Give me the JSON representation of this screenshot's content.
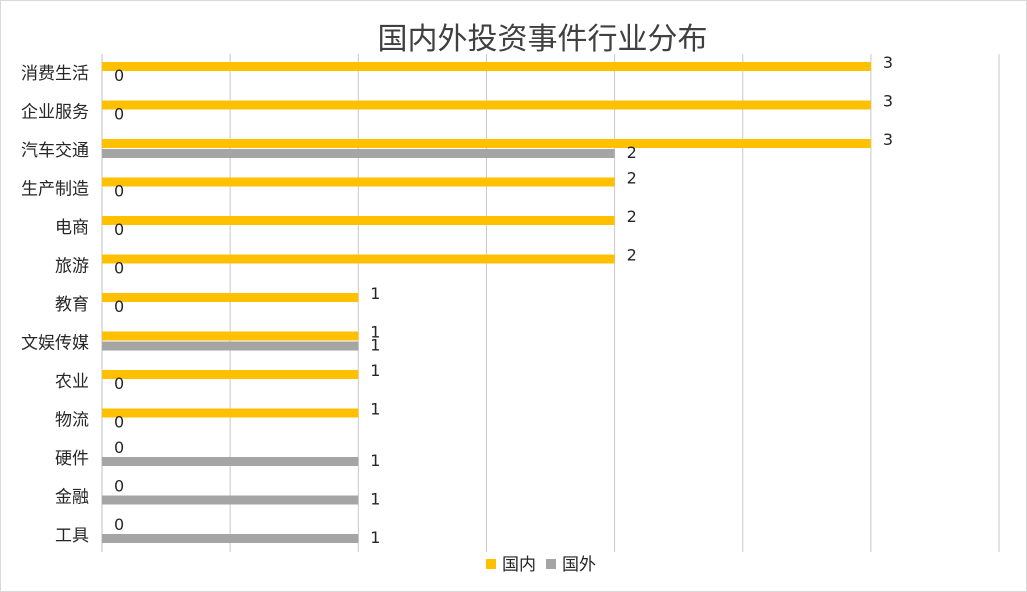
{
  "chart_data": {
    "type": "bar",
    "orientation": "horizontal",
    "title": "国内外投资事件行业分布",
    "categories": [
      "消费生活",
      "企业服务",
      "汽车交通",
      "生产制造",
      "电商",
      "旅游",
      "教育",
      "文娱传媒",
      "农业",
      "物流",
      "硬件",
      "金融",
      "工具"
    ],
    "series": [
      {
        "name": "国内",
        "color": "#FFC000",
        "values": [
          3,
          3,
          3,
          2,
          2,
          2,
          1,
          1,
          1,
          1,
          0,
          0,
          0
        ]
      },
      {
        "name": "国外",
        "color": "#A5A5A5",
        "values": [
          0,
          0,
          2,
          0,
          0,
          0,
          0,
          1,
          0,
          0,
          1,
          1,
          1
        ]
      }
    ],
    "xlim": [
      0,
      3.5
    ],
    "grid": true,
    "legend_position": "bottom"
  }
}
